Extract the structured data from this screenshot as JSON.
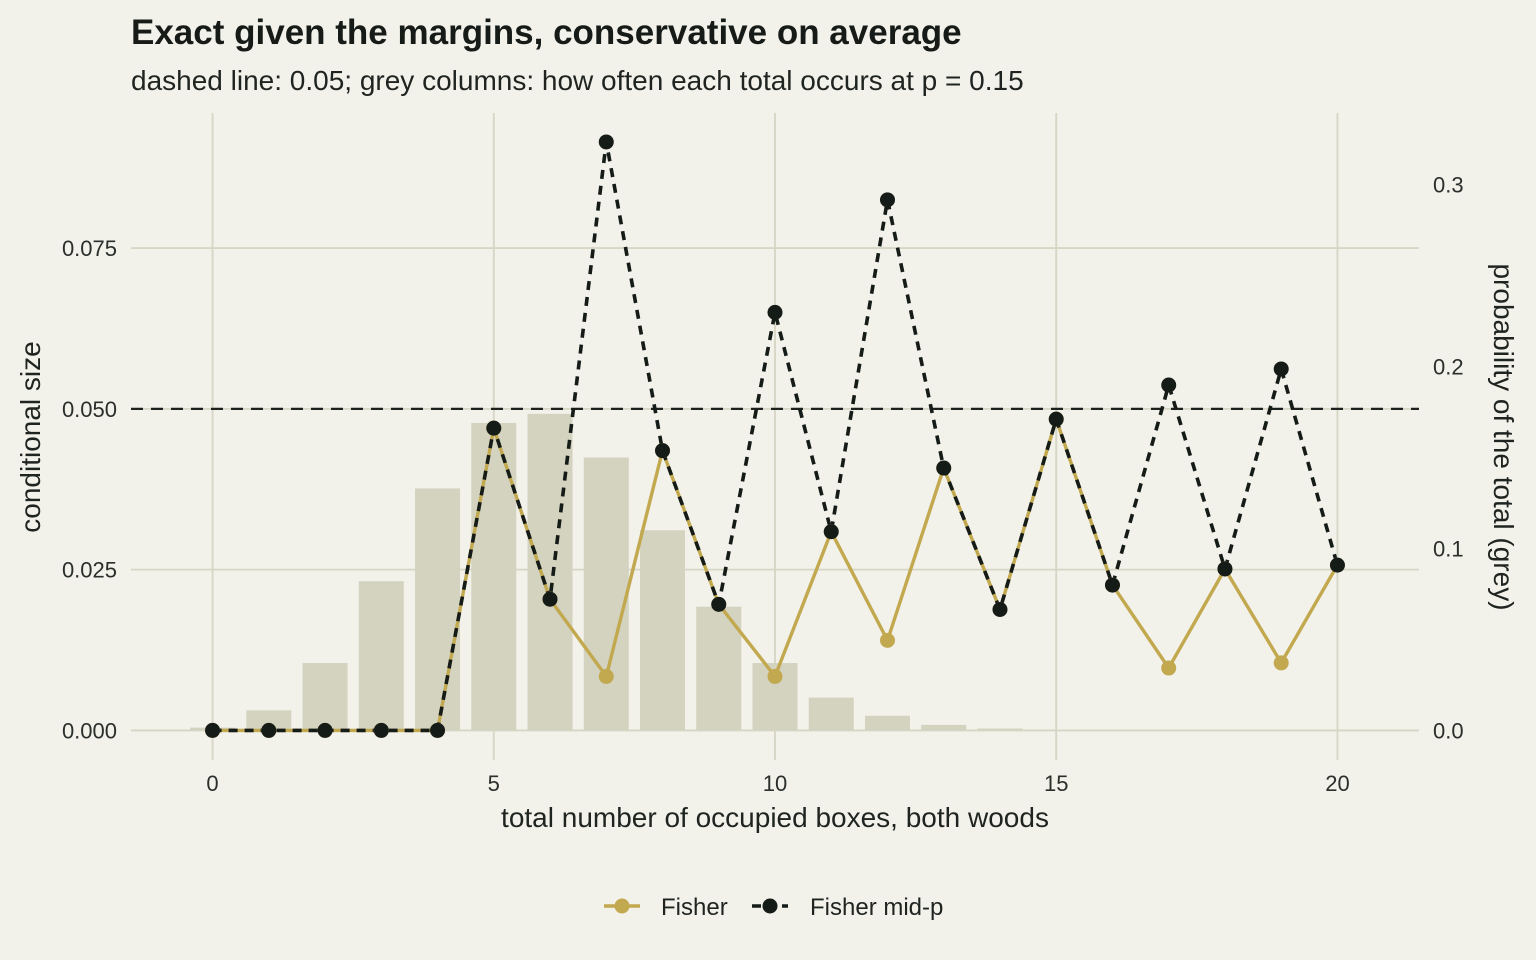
{
  "chart_data": {
    "type": "line",
    "title": "Exact given the margins, conservative on average",
    "subtitle": "dashed line: 0.05; grey columns: how often each total occurs at p = 0.15",
    "xlabel": "total number of occupied boxes, both woods",
    "ylabel": "conditional size",
    "y2label": "probability of the total (grey)",
    "xlim": [
      -1.45,
      21.45
    ],
    "ylim": [
      -0.0046,
      0.096
    ],
    "y2lim": [
      -0.0163,
      0.3394
    ],
    "x_ticks": [
      0,
      5,
      10,
      15,
      20
    ],
    "x_tick_labels": [
      "0",
      "5",
      "10",
      "15",
      "20"
    ],
    "y_ticks": [
      0,
      0.025,
      0.05,
      0.075
    ],
    "y_tick_labels": [
      "0.000",
      "0.025",
      "0.050",
      "0.075"
    ],
    "y2_ticks": [
      0,
      0.1,
      0.2,
      0.3
    ],
    "y2_tick_labels": [
      "0.0",
      "0.1",
      "0.2",
      "0.3"
    ],
    "reference_line": {
      "y": 0.05,
      "style": "dashed"
    },
    "grid": true,
    "legend_position": "bottom",
    "x": [
      0,
      1,
      2,
      3,
      4,
      5,
      6,
      7,
      8,
      9,
      10,
      11,
      12,
      13,
      14,
      15,
      16,
      17,
      18,
      19,
      20
    ],
    "bars": {
      "name": "probability of the total",
      "axis": "right",
      "color": "#d3d3c0",
      "values": [
        0.0015,
        0.011,
        0.037,
        0.082,
        0.133,
        0.169,
        0.174,
        0.15,
        0.11,
        0.068,
        0.037,
        0.018,
        0.008,
        0.003,
        0.001,
        0,
        0,
        0,
        0,
        0,
        0
      ]
    },
    "series": [
      {
        "name": "Fisher",
        "color": "#c2a84e",
        "line": "solid",
        "values": [
          0,
          0,
          0,
          0,
          0,
          0.047,
          0.0204,
          0.0084,
          0.0435,
          0.0196,
          0.0084,
          0.0309,
          0.014,
          0.0408,
          0.0188,
          0.0484,
          0.0226,
          0.0097,
          0.0251,
          0.0105,
          0.0257
        ]
      },
      {
        "name": "Fisher mid-p",
        "color": "#151b17",
        "line": "dashed",
        "values": [
          0,
          0,
          0,
          0,
          0,
          0.047,
          0.0204,
          0.0915,
          0.0435,
          0.0196,
          0.065,
          0.0309,
          0.0825,
          0.0408,
          0.0188,
          0.0484,
          0.0226,
          0.0537,
          0.0251,
          0.0562,
          0.0257
        ]
      }
    ]
  }
}
